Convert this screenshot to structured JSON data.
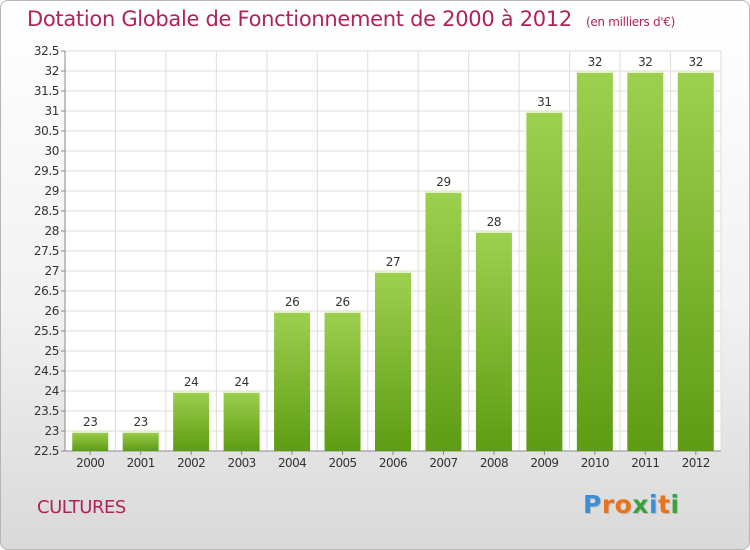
{
  "colors": {
    "title": "#b0235a",
    "bar_top": "#9ed04f",
    "bar_bottom": "#5e9c14",
    "grid": "#dddddd"
  },
  "header": {
    "title": "Dotation Globale de Fonctionnement de 2000 à 2012",
    "unit": "(en milliers d'€)"
  },
  "footer": {
    "commune": "CULTURES",
    "logo": "Proxiti"
  },
  "chart_data": {
    "type": "bar",
    "title": "Dotation Globale de Fonctionnement de 2000 à 2012",
    "subtitle": "(en milliers d'€)",
    "xlabel": "",
    "ylabel": "",
    "categories": [
      "2000",
      "2001",
      "2002",
      "2003",
      "2004",
      "2005",
      "2006",
      "2007",
      "2008",
      "2009",
      "2010",
      "2011",
      "2012"
    ],
    "values": [
      23,
      23,
      24,
      24,
      26,
      26,
      27,
      29,
      28,
      31,
      32,
      32,
      32
    ],
    "data_labels": [
      "23",
      "23",
      "24",
      "24",
      "26",
      "26",
      "27",
      "29",
      "28",
      "31",
      "32",
      "32",
      "32"
    ],
    "ylim": [
      22.5,
      32.5
    ],
    "yticks": [
      22.5,
      23,
      23.5,
      24,
      24.5,
      25,
      25.5,
      26,
      26.5,
      27,
      27.5,
      28,
      28.5,
      29,
      29.5,
      30,
      30.5,
      31,
      31.5,
      32,
      32.5
    ],
    "ytick_labels": [
      "22.5",
      "23",
      "23.5",
      "24",
      "24.5",
      "25",
      "25.5",
      "26",
      "26.5",
      "27",
      "27.5",
      "28",
      "28.5",
      "29",
      "29.5",
      "30",
      "30.5",
      "31",
      "31.5",
      "32",
      "32.5"
    ],
    "grid": true,
    "legend": "none"
  }
}
